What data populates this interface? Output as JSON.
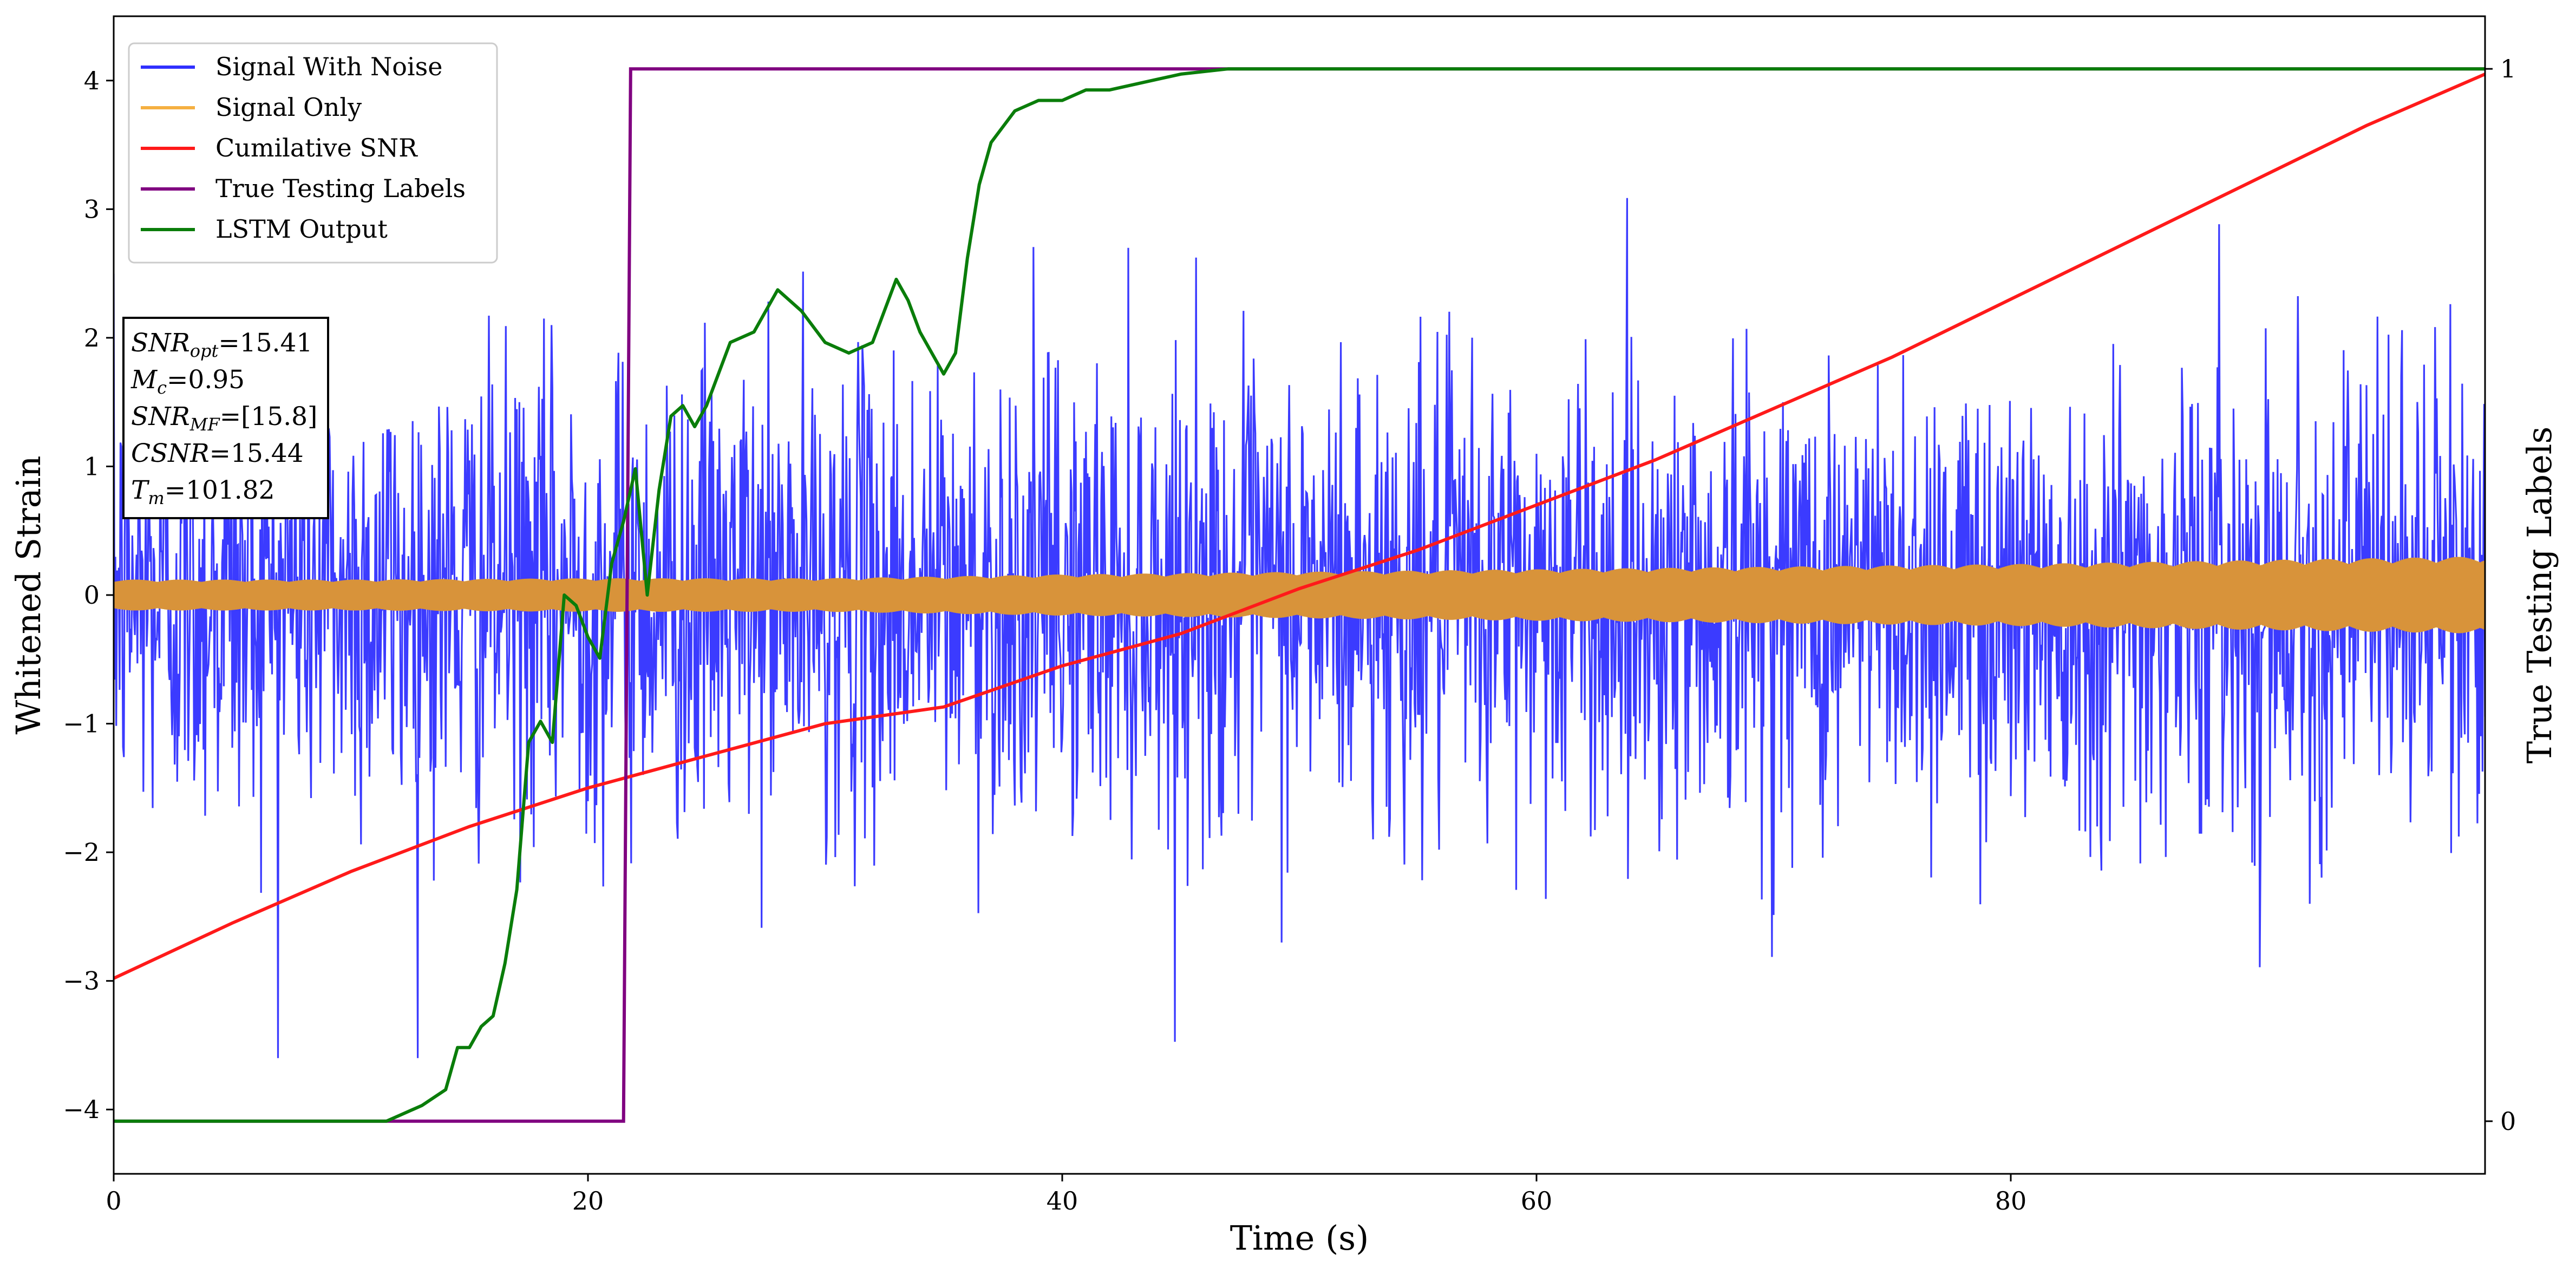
{
  "chart_data": {
    "type": "line",
    "xlabel": "Time (s)",
    "ylabel": "Whitened Strain",
    "y2label": "True Testing Labels",
    "xlim": [
      0,
      100
    ],
    "ylim": [
      -4.5,
      4.5
    ],
    "y2lim": [
      -0.05,
      1.05
    ],
    "xticks": [
      0,
      20,
      40,
      60,
      80
    ],
    "yticks": [
      -4,
      -3,
      -2,
      -1,
      0,
      1,
      2,
      3,
      4
    ],
    "y2ticks": [
      0,
      1
    ],
    "grid": false,
    "legend_position": "top-left",
    "series": [
      {
        "name": "Signal With Noise",
        "color": "#3030ff",
        "axis": "left",
        "noise_std": 0.9,
        "y_extremes": [
          -3.95,
          4.05
        ]
      },
      {
        "name": "Signal Only",
        "color": "#d8933a",
        "legend_color": "#f5b041",
        "axis": "left",
        "envelope": {
          "x": [
            0,
            10,
            20,
            30,
            40,
            50,
            60,
            70,
            80,
            90,
            100
          ],
          "amplitude": [
            0.12,
            0.12,
            0.13,
            0.13,
            0.16,
            0.18,
            0.2,
            0.22,
            0.24,
            0.27,
            0.3
          ]
        }
      },
      {
        "name": "Cumilative SNR",
        "color": "#ff1a1a",
        "axis": "left",
        "x": [
          0,
          5,
          10,
          15,
          20,
          25,
          30,
          35,
          40,
          45,
          50,
          55,
          60,
          65,
          70,
          75,
          80,
          85,
          90,
          95,
          100
        ],
        "y": [
          -2.98,
          -2.55,
          -2.15,
          -1.8,
          -1.5,
          -1.25,
          -1.0,
          -0.87,
          -0.55,
          -0.3,
          0.05,
          0.35,
          0.7,
          1.05,
          1.45,
          1.85,
          2.3,
          2.75,
          3.2,
          3.65,
          4.05
        ]
      },
      {
        "name": "True Testing Labels",
        "color": "#800080",
        "axis": "right",
        "x": [
          0,
          21.5,
          21.8,
          100
        ],
        "y": [
          0,
          0,
          1,
          1
        ]
      },
      {
        "name": "LSTM Output",
        "color": "#0a7d0a",
        "axis": "right",
        "x": [
          0,
          11.5,
          12,
          13,
          14,
          14.5,
          15,
          15.5,
          16,
          16.5,
          17,
          17.5,
          18,
          18.5,
          19,
          19.5,
          20,
          20.5,
          21,
          21.5,
          22,
          22.5,
          23,
          23.5,
          24,
          24.5,
          25,
          26,
          27,
          28,
          29,
          30,
          31,
          32,
          33,
          33.5,
          34,
          35,
          35.5,
          36,
          36.5,
          37,
          38,
          39,
          40,
          41,
          42,
          43,
          44,
          45,
          47,
          50,
          100
        ],
        "y": [
          0,
          0,
          0.005,
          0.015,
          0.03,
          0.07,
          0.07,
          0.09,
          0.1,
          0.15,
          0.22,
          0.36,
          0.38,
          0.36,
          0.5,
          0.49,
          0.46,
          0.44,
          0.53,
          0.57,
          0.62,
          0.5,
          0.6,
          0.67,
          0.68,
          0.66,
          0.68,
          0.74,
          0.75,
          0.79,
          0.77,
          0.74,
          0.73,
          0.74,
          0.8,
          0.78,
          0.75,
          0.71,
          0.73,
          0.82,
          0.89,
          0.93,
          0.96,
          0.97,
          0.97,
          0.98,
          0.98,
          0.985,
          0.99,
          0.995,
          1.0,
          1.0,
          1.0
        ]
      }
    ],
    "annotation": {
      "lines": [
        {
          "sym": "SNR",
          "sub": "opt",
          "value": "=15.41"
        },
        {
          "sym": "M",
          "sub": "c",
          "value": "=0.95"
        },
        {
          "sym": "SNR",
          "sub": "MF",
          "value": "=[15.8]"
        },
        {
          "sym": "CSNR",
          "sub": "",
          "value": "=15.44"
        },
        {
          "sym": "T",
          "sub": "m",
          "value": "=101.82"
        }
      ]
    }
  }
}
